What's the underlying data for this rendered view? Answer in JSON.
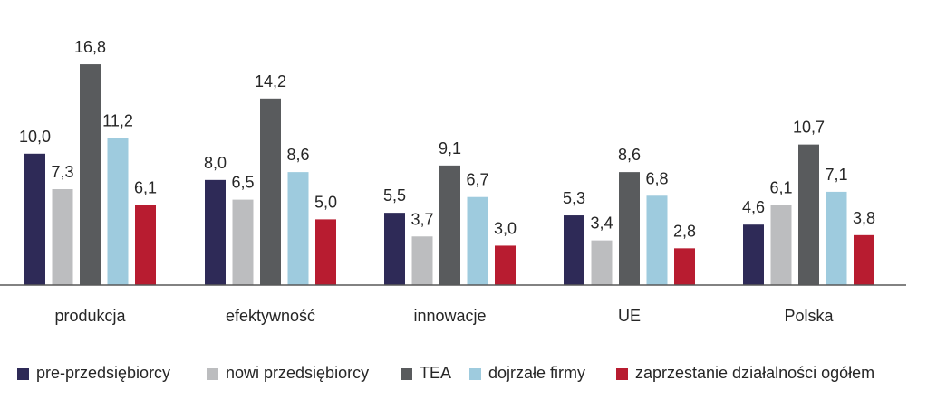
{
  "chart_data": {
    "type": "bar",
    "title": "",
    "xlabel": "",
    "ylabel": "",
    "ylim": [
      0,
      17.5
    ],
    "grid": false,
    "legend_position": "bottom",
    "categories": [
      "produkcja",
      "efektywność",
      "innowacje",
      "UE",
      "Polska"
    ],
    "series": [
      {
        "name": "pre-przedsiębiorcy",
        "color": "#2e2a57",
        "values": [
          10.0,
          8.0,
          5.5,
          5.3,
          4.6
        ],
        "labels": [
          "10,0",
          "8,0",
          "5,5",
          "5,3",
          "4,6"
        ]
      },
      {
        "name": "nowi przedsiębiorcy",
        "color": "#bcbdbf",
        "values": [
          7.3,
          6.5,
          3.7,
          3.4,
          6.1
        ],
        "labels": [
          "7,3",
          "6,5",
          "3,7",
          "3,4",
          "6,1"
        ]
      },
      {
        "name": "TEA",
        "color": "#595b5d",
        "values": [
          16.8,
          14.2,
          9.1,
          8.6,
          10.7
        ],
        "labels": [
          "16,8",
          "14,2",
          "9,1",
          "8,6",
          "10,7"
        ]
      },
      {
        "name": "dojrzałe firmy",
        "color": "#9ecbde",
        "values": [
          11.2,
          8.6,
          6.7,
          6.8,
          7.1
        ],
        "labels": [
          "11,2",
          "8,6",
          "6,7",
          "6,8",
          "7,1"
        ]
      },
      {
        "name": "zaprzestanie działalności ogółem",
        "color": "#b81c30",
        "values": [
          6.1,
          5.0,
          3.0,
          2.8,
          3.8
        ],
        "labels": [
          "6,1",
          "5,0",
          "3,0",
          "2,8",
          "3,8"
        ]
      }
    ]
  }
}
